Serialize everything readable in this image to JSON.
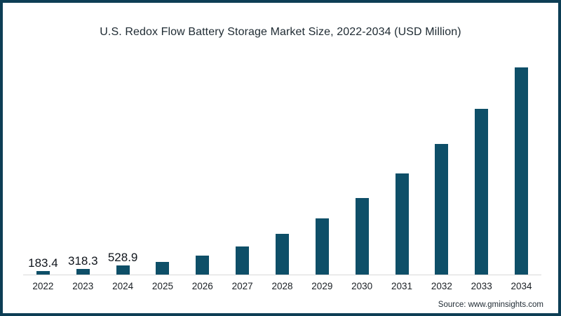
{
  "chart_data": {
    "type": "bar",
    "title": "U.S. Redox Flow Battery Storage Market Size, 2022-2034 (USD Million)",
    "xlabel": "",
    "ylabel": "",
    "categories": [
      "2022",
      "2023",
      "2024",
      "2025",
      "2026",
      "2027",
      "2028",
      "2029",
      "2030",
      "2031",
      "2032",
      "2033",
      "2034"
    ],
    "values": [
      183.4,
      318.3,
      528.9,
      720,
      1100,
      1600,
      2320,
      3220,
      4380,
      5780,
      7460,
      9460,
      11800
    ],
    "data_labels": [
      "183.4",
      "318.3",
      "528.9",
      "",
      "",
      "",
      "",
      "",
      "",
      "",
      "",
      "",
      ""
    ],
    "ylim": [
      0,
      12400
    ],
    "grid": false,
    "legend": "none",
    "bar_color": "#0e4f68",
    "axis_line_color": "#d8d8d8"
  },
  "source": {
    "text": "Source: www.gminsights.com"
  },
  "colors": {
    "frame_border": "#0d3e55",
    "background": "#ffffff",
    "title_text": "#1e2a32",
    "tick_text": "#1a1f24",
    "data_label_text": "#10151c"
  }
}
